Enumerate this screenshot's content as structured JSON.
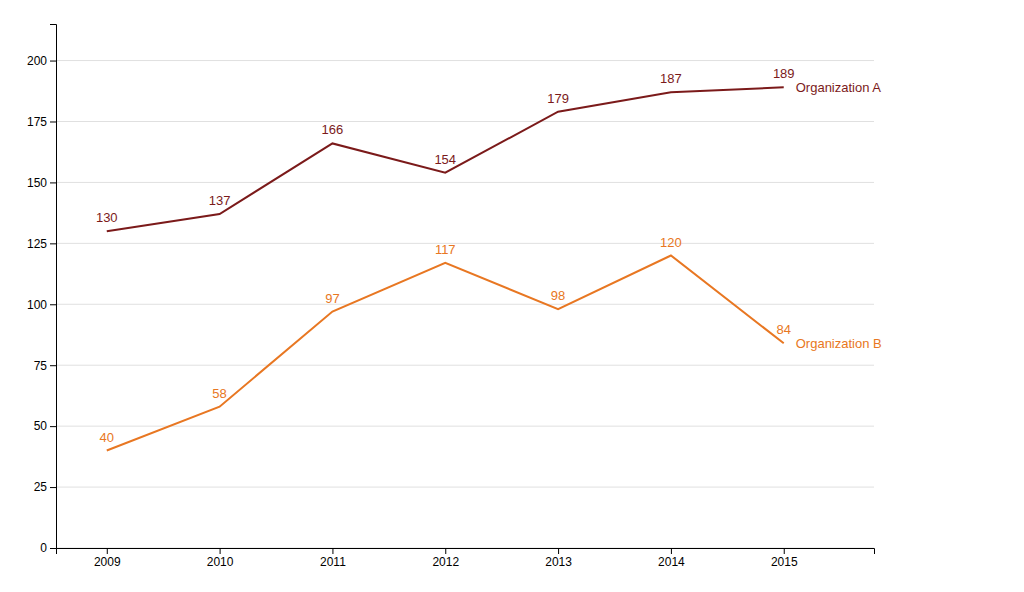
{
  "chart_data": {
    "type": "line",
    "x": [
      2009,
      2010,
      2011,
      2012,
      2013,
      2014,
      2015
    ],
    "series": [
      {
        "name": "Organization A",
        "color": "#7B1A1A",
        "values": [
          130,
          137,
          166,
          154,
          179,
          187,
          189
        ]
      },
      {
        "name": "Organization B",
        "color": "#E87722",
        "values": [
          40,
          58,
          97,
          117,
          98,
          120,
          84
        ]
      }
    ],
    "xlim": [
      2008.55,
      2015.8
    ],
    "xticks": [
      2009,
      2010,
      2011,
      2012,
      2013,
      2014,
      2015
    ],
    "ylim": [
      0,
      215
    ],
    "yticks": [
      0,
      25,
      50,
      75,
      100,
      125,
      150,
      175,
      200
    ],
    "grid": true,
    "data_labels": true
  }
}
